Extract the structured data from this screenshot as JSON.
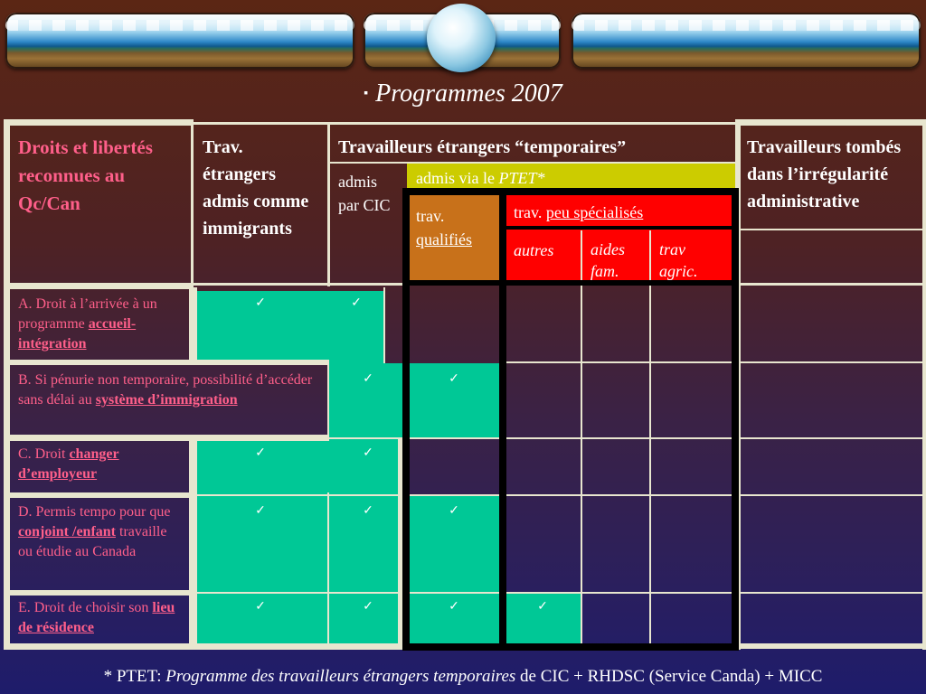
{
  "title": "Programmes 2007",
  "title_bullet": "▪",
  "table": {
    "col_rights_header": "Droits et libertés reconnues au Qc/Can",
    "col_immigrants_header": "Trav. étrangers admis comme immigrants",
    "temporary_header": "Travailleurs étrangers “temporaires”",
    "admis_cic": "admis par CIC",
    "admis_ptet_prefix": "admis via le ",
    "admis_ptet_italic": "PTET*",
    "trav_qualifies_prefix": "trav.",
    "trav_qualifies_link": "qualifiés",
    "trav_peu_prefix": "trav. ",
    "trav_peu_link": "peu spécialisés",
    "sub_autres": "autres",
    "sub_aides": "aides fam.",
    "sub_agric": "trav agric.",
    "col_irregular_header": "Travailleurs tombés dans l’irrégularité administrative",
    "check_symbol": "✓",
    "rows": [
      {
        "prefix": "A. Droit à l’arrivée à un programme ",
        "link": "accueil-intégration",
        "suffix": ""
      },
      {
        "prefix": "B. Si pénurie non temporaire, possibilité d’accéder sans délai au ",
        "link": "système d’immigration",
        "suffix": ""
      },
      {
        "prefix": "C. Droit ",
        "link": "changer d’employeur",
        "suffix": ""
      },
      {
        "prefix": "D. Permis tempo pour que ",
        "link": "conjoint /enfant",
        "suffix": " travaille ou étudie au Canada"
      },
      {
        "prefix": "E. Droit de choisir son ",
        "link": "lieu de résidence",
        "suffix": ""
      }
    ]
  },
  "footnote": {
    "prefix": "* PTET: ",
    "italic": "Programme des travailleurs étrangers temporaires",
    "suffix": " de CIC + RHDSC (Service Canda) + MICC"
  },
  "colors": {
    "teal": "#00c896",
    "yellow": "#cccc00",
    "orange": "#c8711a",
    "red": "#ff0000",
    "pink_text": "#ff5f8a"
  }
}
